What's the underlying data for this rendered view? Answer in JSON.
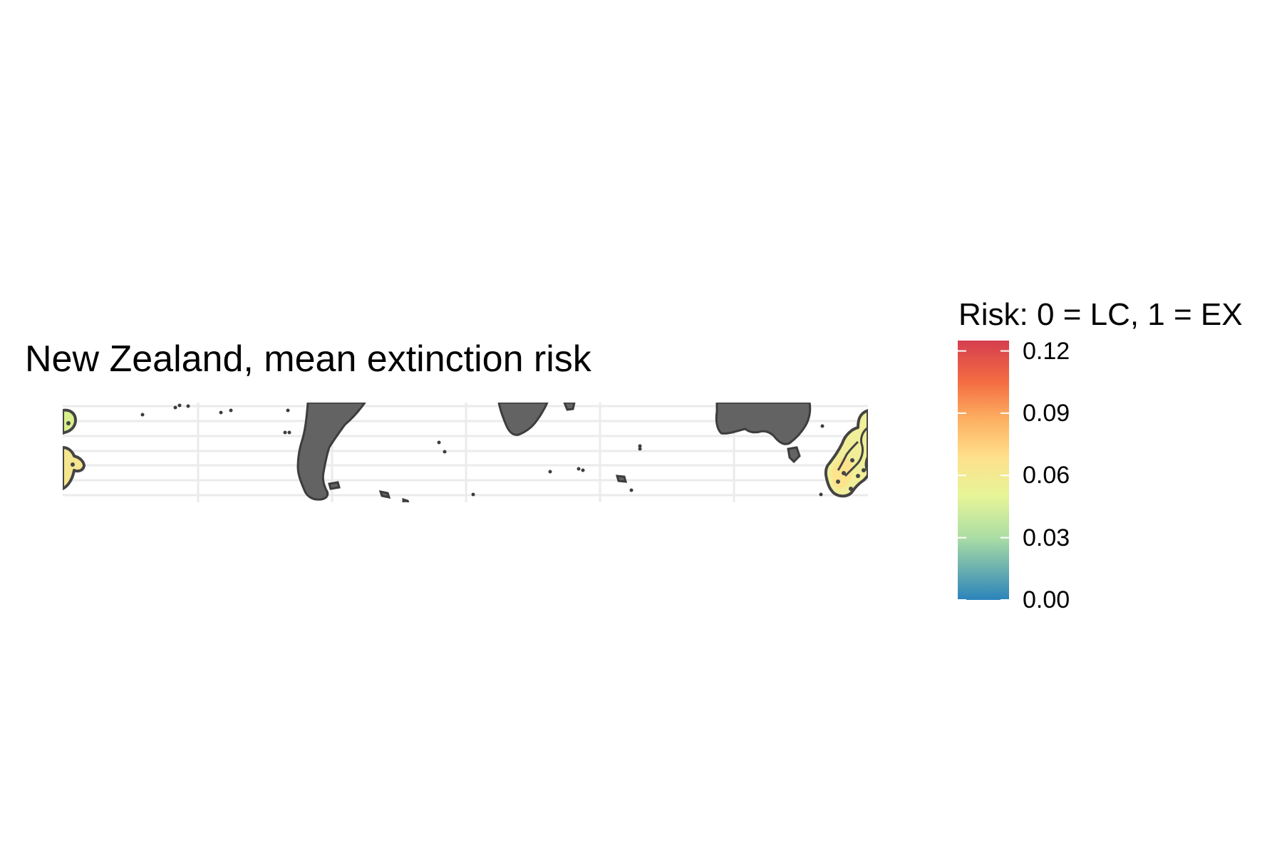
{
  "title": "New Zealand, mean extinction risk",
  "legend": {
    "title": "Risk: 0 = LC, 1 = EX",
    "ticks": [
      "0.12",
      "0.09",
      "0.06",
      "0.03",
      "0.00"
    ],
    "tick_values": [
      0.12,
      0.09,
      0.06,
      0.03,
      0.0
    ],
    "range": [
      0.0,
      0.125
    ],
    "palette": [
      "#2b83ba",
      "#abdda4",
      "#e6f598",
      "#fee08b",
      "#fdae61",
      "#f46d43",
      "#d53e4f"
    ]
  },
  "map": {
    "projection": "longitude-latitude crop of the Southern Hemisphere",
    "land_color": "#636363",
    "land_outline": "#3d3d3d",
    "gridline_color": "#ebebeb",
    "highlighted_region": "New Zealand",
    "highlighted_fill": [
      "#e6f598",
      "#fee08b"
    ]
  },
  "chart_data": {
    "type": "map",
    "title": "New Zealand, mean extinction risk",
    "legend_title": "Risk: 0 = LC, 1 = EX",
    "legend_placement": "right",
    "color_scale": {
      "min": 0.0,
      "max": 0.125,
      "ticks": [
        0.0,
        0.03,
        0.06,
        0.09,
        0.12
      ]
    },
    "regions": [
      {
        "name": "New Zealand",
        "approx_value": 0.055
      }
    ],
    "grid": true
  }
}
